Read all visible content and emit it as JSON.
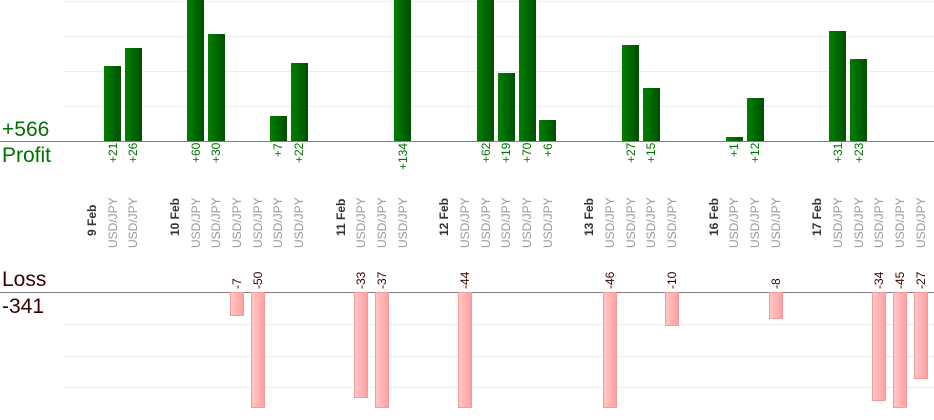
{
  "summary": {
    "profit_total": "+566",
    "profit_label": "Profit",
    "loss_label": "Loss",
    "loss_total": "-341"
  },
  "colors": {
    "profit": "#006400",
    "loss": "#ffb0b0",
    "loss_text": "#3a0000"
  },
  "chart_data": {
    "type": "bar",
    "title": "",
    "groups": [
      {
        "date": "9 Feb",
        "trades": [
          {
            "pair": "USD/JPY",
            "value": 21
          },
          {
            "pair": "USD/JPY",
            "value": 26
          }
        ]
      },
      {
        "date": "10 Feb",
        "trades": [
          {
            "pair": "USD/JPY",
            "value": 60
          },
          {
            "pair": "USD/JPY",
            "value": 30
          },
          {
            "pair": "USD/JPY",
            "value": -7
          },
          {
            "pair": "USD/JPY",
            "value": -50
          },
          {
            "pair": "USD/JPY",
            "value": 7
          },
          {
            "pair": "USD/JPY",
            "value": 22
          }
        ]
      },
      {
        "date": "11 Feb",
        "trades": [
          {
            "pair": "USD/JPY",
            "value": -33
          },
          {
            "pair": "USD/JPY",
            "value": -37
          },
          {
            "pair": "USD/JPY",
            "value": 134
          }
        ]
      },
      {
        "date": "12 Feb",
        "trades": [
          {
            "pair": "USD/JPY",
            "value": -44
          },
          {
            "pair": "USD/JPY",
            "value": 62
          },
          {
            "pair": "USD/JPY",
            "value": 19
          },
          {
            "pair": "USD/JPY",
            "value": 70
          },
          {
            "pair": "USD/JPY",
            "value": 6
          }
        ]
      },
      {
        "date": "13 Feb",
        "trades": [
          {
            "pair": "USD/JPY",
            "value": -46
          },
          {
            "pair": "USD/JPY",
            "value": 27
          },
          {
            "pair": "USD/JPY",
            "value": 15
          },
          {
            "pair": "USD/JPY",
            "value": -10
          }
        ]
      },
      {
        "date": "16 Feb",
        "trades": [
          {
            "pair": "USD/JPY",
            "value": 1
          },
          {
            "pair": "USD/JPY",
            "value": 12
          },
          {
            "pair": "USD/JPY",
            "value": -8
          }
        ]
      },
      {
        "date": "17 Feb",
        "trades": [
          {
            "pair": "USD/JPY",
            "value": 31
          },
          {
            "pair": "USD/JPY",
            "value": 23
          },
          {
            "pair": "USD/JPY",
            "value": -34
          },
          {
            "pair": "USD/JPY",
            "value": -45
          },
          {
            "pair": "USD/JPY",
            "value": -27
          }
        ]
      }
    ]
  }
}
